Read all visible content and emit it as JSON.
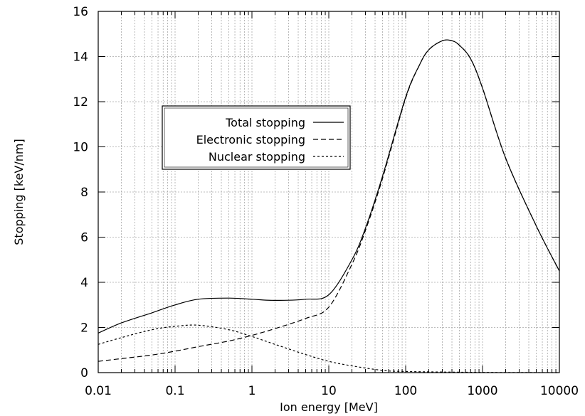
{
  "chart_data": {
    "type": "line",
    "title": "",
    "xlabel": "Ion energy [MeV]",
    "ylabel": "Stopping [keV/nm]",
    "xscale": "log",
    "xlim": [
      0.01,
      10000
    ],
    "ylim": [
      0,
      16
    ],
    "x_ticks": [
      0.01,
      0.1,
      1,
      10,
      100,
      1000,
      10000
    ],
    "x_tick_labels": [
      "0.01",
      "0.1",
      "1",
      "10",
      "100",
      "1000",
      "10000"
    ],
    "y_ticks": [
      0,
      2,
      4,
      6,
      8,
      10,
      12,
      14,
      16
    ],
    "y_tick_labels": [
      "0",
      "2",
      "4",
      "6",
      "8",
      "10",
      "12",
      "14",
      "16"
    ],
    "grid": true,
    "legend_position": "upper-left",
    "series": [
      {
        "name": "Total stopping",
        "dash": "solid",
        "x": [
          0.01,
          0.02,
          0.05,
          0.1,
          0.2,
          0.5,
          1,
          2,
          5,
          10,
          20,
          30,
          50,
          100,
          150,
          200,
          300,
          400,
          500,
          700,
          1000,
          2000,
          5000,
          10000
        ],
        "y": [
          1.75,
          2.2,
          2.65,
          3.0,
          3.25,
          3.3,
          3.25,
          3.2,
          3.25,
          3.45,
          5.0,
          6.4,
          8.7,
          12.2,
          13.6,
          14.3,
          14.7,
          14.7,
          14.5,
          13.9,
          12.6,
          9.5,
          6.5,
          4.5
        ]
      },
      {
        "name": "Electronic stopping",
        "dash": "long-dash",
        "x": [
          0.01,
          0.02,
          0.05,
          0.1,
          0.2,
          0.5,
          1,
          2,
          5,
          10,
          20,
          30,
          50,
          100,
          150,
          200,
          300,
          400,
          500,
          700,
          1000,
          2000,
          5000,
          10000
        ],
        "y": [
          0.5,
          0.62,
          0.78,
          0.95,
          1.15,
          1.4,
          1.65,
          1.95,
          2.4,
          2.9,
          4.8,
          6.3,
          8.6,
          12.15,
          13.6,
          14.3,
          14.7,
          14.7,
          14.5,
          13.9,
          12.6,
          9.5,
          6.5,
          4.5
        ]
      },
      {
        "name": "Nuclear stopping",
        "dash": "short-dash",
        "x": [
          0.01,
          0.02,
          0.05,
          0.1,
          0.2,
          0.5,
          1,
          2,
          5,
          10,
          20,
          50,
          100,
          1000,
          10000
        ],
        "y": [
          1.25,
          1.55,
          1.9,
          2.05,
          2.1,
          1.9,
          1.6,
          1.25,
          0.8,
          0.5,
          0.3,
          0.1,
          0.05,
          0.01,
          0.0
        ]
      }
    ]
  }
}
